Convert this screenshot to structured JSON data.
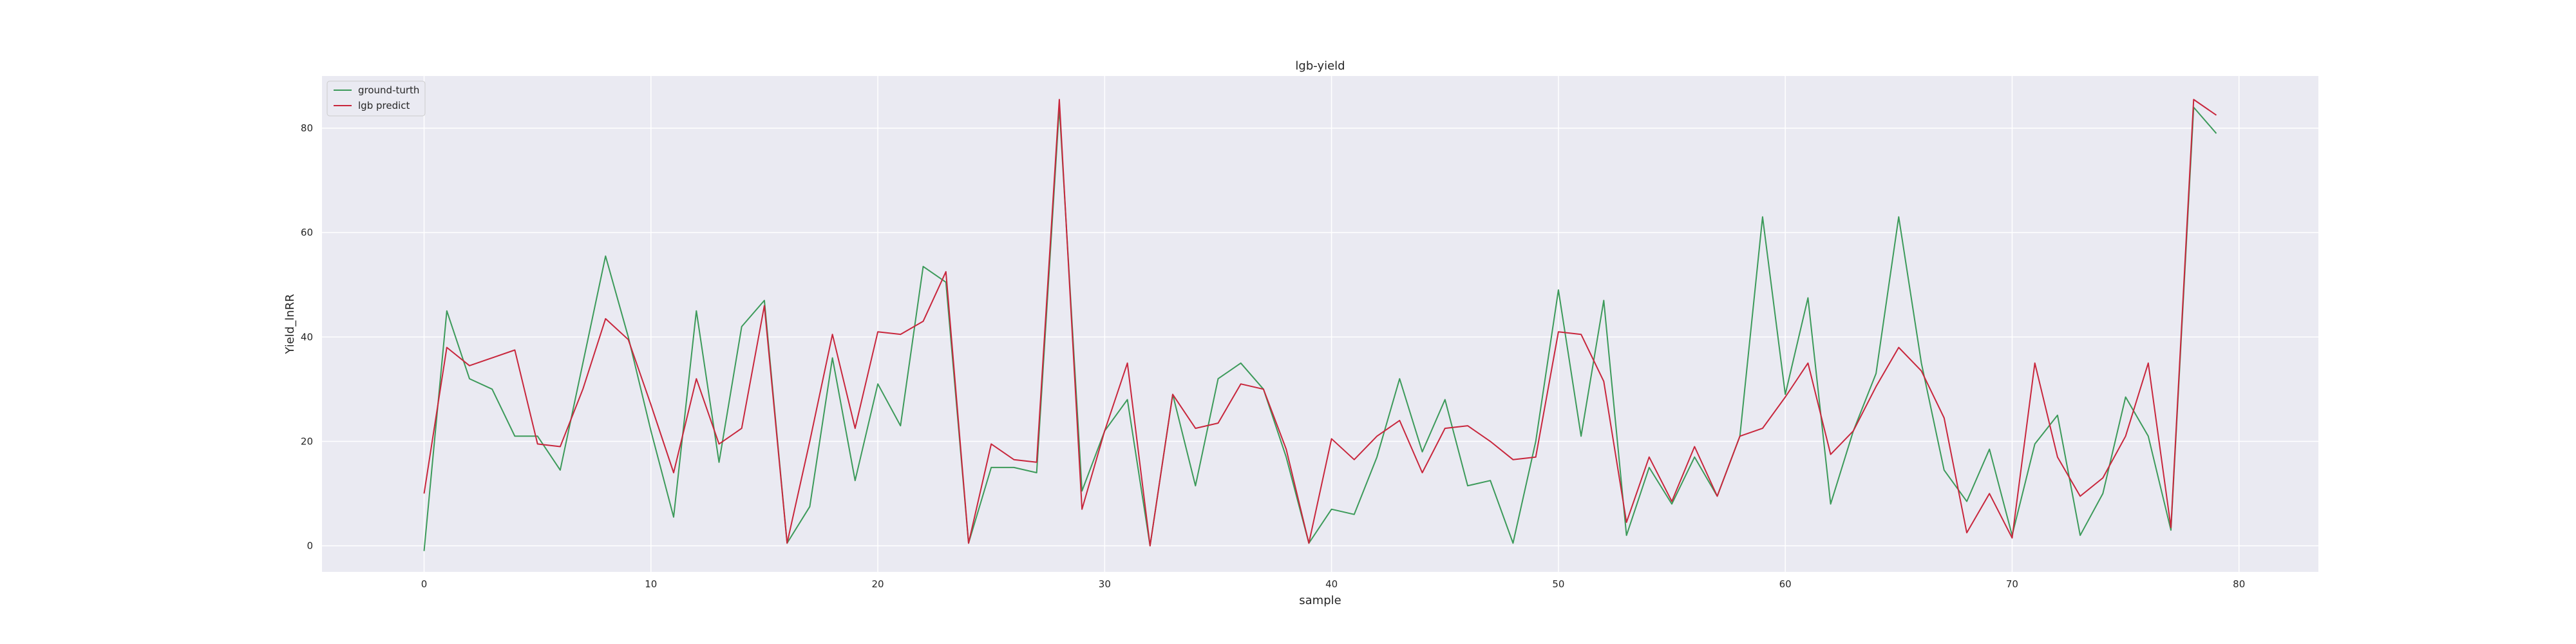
{
  "chart_data": {
    "type": "line",
    "title": "lgb-yield",
    "xlabel": "sample",
    "ylabel": "Yield_lnRR",
    "xlim": [
      -4.5,
      83.5
    ],
    "ylim": [
      -5,
      90
    ],
    "xticks": [
      0,
      10,
      20,
      30,
      40,
      50,
      60,
      70,
      80
    ],
    "yticks": [
      0,
      20,
      40,
      60,
      80
    ],
    "grid": true,
    "legend_position": "top-left",
    "colors": {
      "background": "#eaeaf2",
      "grid": "#ffffff",
      "ground_truth": "#3c9a5a",
      "predict": "#c8263c"
    },
    "series": [
      {
        "name": "ground-turth",
        "values": [
          -1,
          45,
          32,
          30,
          21,
          21,
          14.5,
          35,
          55.5,
          40,
          22,
          5.5,
          45,
          16,
          42,
          47,
          0.5,
          7.5,
          36,
          12.5,
          31,
          23,
          53.5,
          50.5,
          0.5,
          15,
          15,
          14,
          84,
          10.5,
          22,
          28,
          0,
          29,
          11.5,
          32,
          35,
          30,
          17,
          0.5,
          7,
          6,
          17,
          32,
          18,
          28,
          11.5,
          12.5,
          0.5,
          20,
          49,
          21,
          47,
          2,
          15,
          8,
          17,
          9.5,
          21,
          63,
          29,
          47.5,
          8,
          22,
          33,
          63,
          35,
          14.5,
          8.5,
          18.5,
          2,
          19.5,
          25,
          2,
          10,
          28.5,
          21,
          3,
          84,
          79
        ]
      },
      {
        "name": "lgb predict",
        "values": [
          10,
          38,
          34.5,
          36,
          37.5,
          19.5,
          19,
          30,
          43.5,
          39.5,
          27,
          14,
          32,
          19.5,
          22.5,
          46,
          0.5,
          20,
          40.5,
          22.5,
          41,
          40.5,
          43,
          52.5,
          0.5,
          19.5,
          16.5,
          16,
          85.5,
          7,
          22,
          35,
          0,
          29,
          22.5,
          23.5,
          31,
          30,
          18.5,
          0.5,
          20.5,
          16.5,
          21,
          24,
          14,
          22.5,
          23,
          20,
          16.5,
          17,
          41,
          40.5,
          31.5,
          4.5,
          17,
          8.5,
          19,
          9.5,
          21,
          22.5,
          28.5,
          35,
          17.5,
          22,
          30.5,
          38,
          33.5,
          24.5,
          2.5,
          10,
          1.5,
          35,
          17,
          9.5,
          13,
          21,
          35,
          3.5,
          85.5,
          82.5
        ]
      }
    ]
  }
}
